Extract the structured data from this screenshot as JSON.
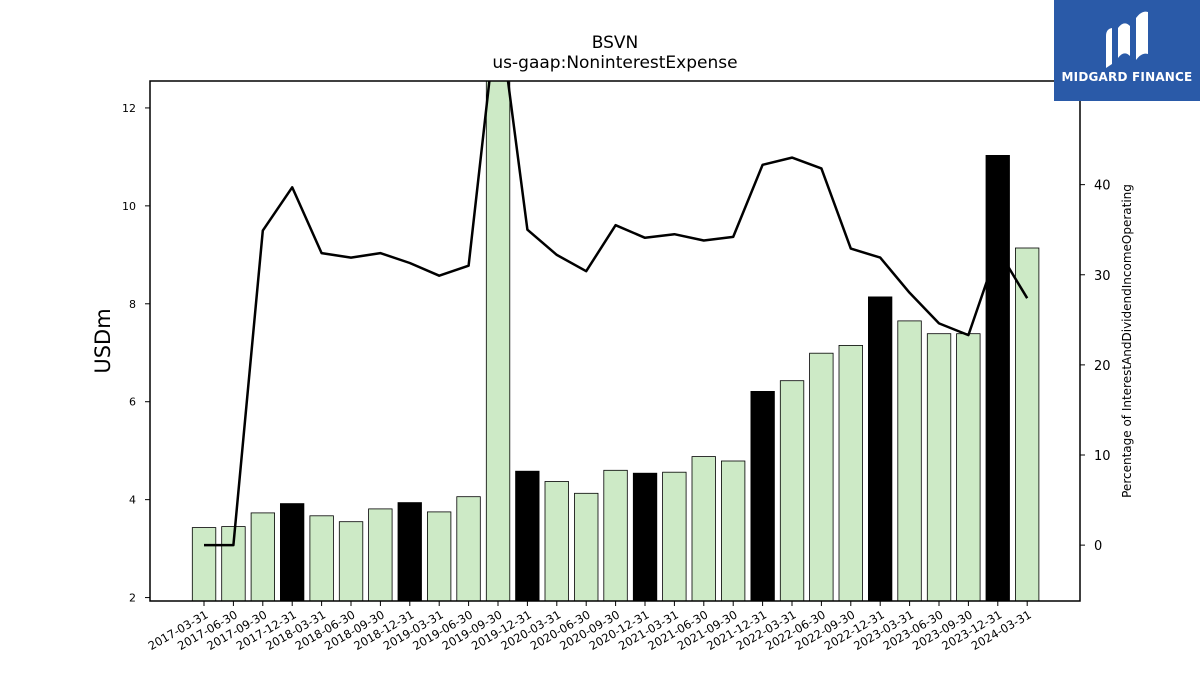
{
  "chart_data": {
    "type": "bar",
    "title": "BSVN",
    "subtitle": "us-gaap:NoninterestExpense",
    "ylabel": "USDm",
    "y2label": "Percentage of InterestAndDividendIncomeOperating",
    "ylim": [
      1.93,
      12.55
    ],
    "y2lim": [
      -6.2,
      51.5
    ],
    "yticks": [
      2,
      4,
      6,
      8,
      10,
      12
    ],
    "y2ticks": [
      0,
      10,
      20,
      30,
      40
    ],
    "categories": [
      "2017-03-31",
      "2017-06-30",
      "2017-09-30",
      "2017-12-31",
      "2018-03-31",
      "2018-06-30",
      "2018-09-30",
      "2018-12-31",
      "2019-03-31",
      "2019-06-30",
      "2019-09-30",
      "2019-12-31",
      "2020-03-31",
      "2020-06-30",
      "2020-09-30",
      "2020-12-31",
      "2021-03-31",
      "2021-06-30",
      "2021-09-30",
      "2021-12-31",
      "2022-03-31",
      "2022-06-30",
      "2022-09-30",
      "2022-12-31",
      "2023-03-31",
      "2023-06-30",
      "2023-09-30",
      "2023-12-31",
      "2024-03-31"
    ],
    "series": [
      {
        "type": "bar",
        "values": [
          3.43,
          3.45,
          3.73,
          3.92,
          3.67,
          3.55,
          3.81,
          3.94,
          3.75,
          4.06,
          12.6,
          4.58,
          4.37,
          4.13,
          4.6,
          4.54,
          4.56,
          4.88,
          4.79,
          6.21,
          6.43,
          6.99,
          7.15,
          8.14,
          7.65,
          7.39,
          7.39,
          11.03,
          9.14
        ],
        "colors": [
          "#cdeac6",
          "#cdeac6",
          "#cdeac6",
          "#000000",
          "#cdeac6",
          "#cdeac6",
          "#cdeac6",
          "#000000",
          "#cdeac6",
          "#cdeac6",
          "#cdeac6",
          "#000000",
          "#cdeac6",
          "#cdeac6",
          "#cdeac6",
          "#000000",
          "#cdeac6",
          "#cdeac6",
          "#cdeac6",
          "#000000",
          "#cdeac6",
          "#cdeac6",
          "#cdeac6",
          "#000000",
          "#cdeac6",
          "#cdeac6",
          "#cdeac6",
          "#000000",
          "#cdeac6"
        ]
      },
      {
        "type": "line",
        "axis": "right",
        "color": "#000000",
        "values": [
          0.0,
          0.0,
          34.9,
          39.7,
          32.4,
          31.9,
          32.4,
          31.3,
          29.9,
          31.0,
          60.0,
          35.0,
          32.2,
          30.4,
          35.5,
          34.1,
          34.5,
          33.8,
          34.2,
          42.2,
          43.0,
          41.8,
          32.9,
          31.9,
          28.0,
          24.6,
          23.3,
          32.8,
          27.4
        ]
      }
    ],
    "grid": false,
    "legend": "none"
  },
  "logo": {
    "text": "MIDGARD FINANCE",
    "color": "#2a5aa8"
  }
}
